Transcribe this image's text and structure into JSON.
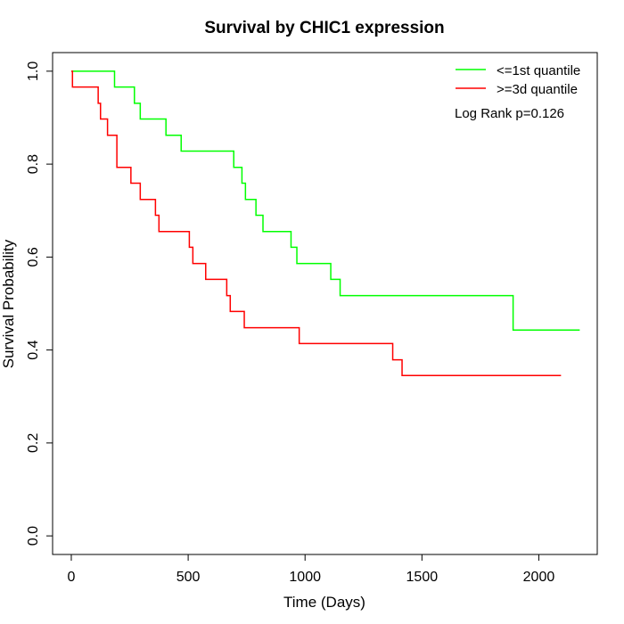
{
  "chart_data": {
    "type": "line",
    "title": "Survival by CHIC1 expression",
    "xlabel": "Time (Days)",
    "ylabel": "Survival Probability",
    "xlim": [
      -80,
      2250
    ],
    "ylim": [
      -0.04,
      1.04
    ],
    "xticks": [
      0,
      500,
      1000,
      1500,
      2000
    ],
    "yticks": [
      0.0,
      0.2,
      0.4,
      0.6,
      0.8,
      1.0
    ],
    "xtick_labels": [
      "0",
      "500",
      "1000",
      "1500",
      "2000"
    ],
    "ytick_labels": [
      "0.0",
      "0.2",
      "0.4",
      "0.6",
      "0.8",
      "1.0"
    ],
    "step": true,
    "grid": false,
    "legend_position": "top-right",
    "annotation": "Log Rank p=0.126",
    "series": [
      {
        "name": "<=1st quantile",
        "color": "#00ff00",
        "x": [
          0,
          185,
          270,
          295,
          405,
          470,
          695,
          730,
          745,
          790,
          820,
          940,
          965,
          1110,
          1150,
          1890,
          2175
        ],
        "y": [
          1.0,
          0.966,
          0.931,
          0.897,
          0.862,
          0.828,
          0.793,
          0.759,
          0.724,
          0.69,
          0.655,
          0.621,
          0.586,
          0.552,
          0.517,
          0.443,
          0.443
        ]
      },
      {
        "name": ">=3d quantile",
        "color": "#ff0000",
        "x": [
          0,
          5,
          115,
          125,
          155,
          195,
          255,
          295,
          360,
          375,
          505,
          520,
          540,
          575,
          665,
          680,
          740,
          975,
          1375,
          1415,
          2095
        ],
        "y": [
          1.0,
          0.966,
          0.931,
          0.897,
          0.862,
          0.793,
          0.759,
          0.724,
          0.69,
          0.655,
          0.621,
          0.586,
          0.586,
          0.552,
          0.517,
          0.483,
          0.448,
          0.414,
          0.379,
          0.345,
          0.345
        ]
      }
    ]
  }
}
